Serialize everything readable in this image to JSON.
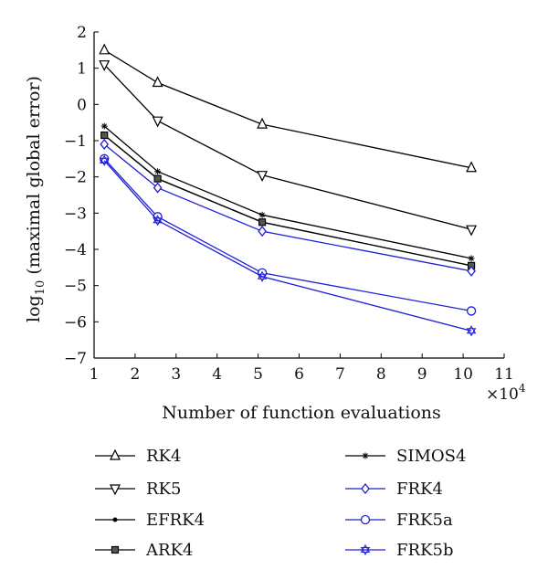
{
  "chart_data": {
    "type": "line",
    "title": "",
    "xlabel": "Number of function evaluations",
    "ylabel": "log10 (maximal global error)",
    "ylabel_base": "log",
    "ylabel_sub": "10",
    "ylabel_rest": " (maximal global error)",
    "x_multiplier_base": "×10",
    "x_multiplier_exp": "4",
    "xlim": [
      1,
      11
    ],
    "ylim": [
      -7,
      2
    ],
    "xticks": [
      1,
      2,
      3,
      4,
      5,
      6,
      7,
      8,
      9,
      10,
      11
    ],
    "yticks": [
      2,
      1,
      0,
      -1,
      -2,
      -3,
      -4,
      -5,
      -6,
      -7
    ],
    "xtick_labels": [
      "1",
      "2",
      "3",
      "4",
      "5",
      "6",
      "7",
      "8",
      "9",
      "10",
      "11"
    ],
    "ytick_labels": [
      "2",
      "1",
      "0",
      "−1",
      "−2",
      "−3",
      "−4",
      "−5",
      "−6",
      "−7"
    ],
    "grid": false,
    "legend_position": "below",
    "series": [
      {
        "name": "RK4",
        "marker": "triangle-up",
        "color": "#000000",
        "x": [
          1.25,
          2.55,
          5.1,
          10.2
        ],
        "y": [
          1.5,
          0.6,
          -0.55,
          -1.75
        ]
      },
      {
        "name": "RK5",
        "marker": "triangle-down",
        "color": "#000000",
        "x": [
          1.25,
          2.55,
          5.1,
          10.2
        ],
        "y": [
          1.1,
          -0.45,
          -1.95,
          -3.45
        ]
      },
      {
        "name": "EFRK4",
        "marker": "dot",
        "color": "#000000",
        "x": [
          1.25,
          2.55,
          5.1,
          10.2
        ],
        "y": [
          -0.85,
          -2.05,
          -3.25,
          -4.45
        ]
      },
      {
        "name": "ARK4",
        "marker": "square",
        "color": "#000000",
        "x": [
          1.25,
          2.55,
          5.1,
          10.2
        ],
        "y": [
          -0.85,
          -2.05,
          -3.25,
          -4.45
        ]
      },
      {
        "name": "SIMOS4",
        "marker": "star",
        "color": "#000000",
        "x": [
          1.25,
          2.55,
          5.1,
          10.2
        ],
        "y": [
          -0.6,
          -1.85,
          -3.05,
          -4.25
        ]
      },
      {
        "name": "FRK4",
        "marker": "diamond",
        "color": "#1f1fd6",
        "x": [
          1.25,
          2.55,
          5.1,
          10.2
        ],
        "y": [
          -1.1,
          -2.3,
          -3.5,
          -4.6
        ]
      },
      {
        "name": "FRK5a",
        "marker": "circle",
        "color": "#1f1fd6",
        "x": [
          1.25,
          2.55,
          5.1,
          10.2
        ],
        "y": [
          -1.5,
          -3.1,
          -4.65,
          -5.7
        ]
      },
      {
        "name": "FRK5b",
        "marker": "hexagram",
        "color": "#1f1fd6",
        "x": [
          1.25,
          2.55,
          5.1,
          10.2
        ],
        "y": [
          -1.55,
          -3.2,
          -4.75,
          -6.25
        ]
      }
    ]
  }
}
